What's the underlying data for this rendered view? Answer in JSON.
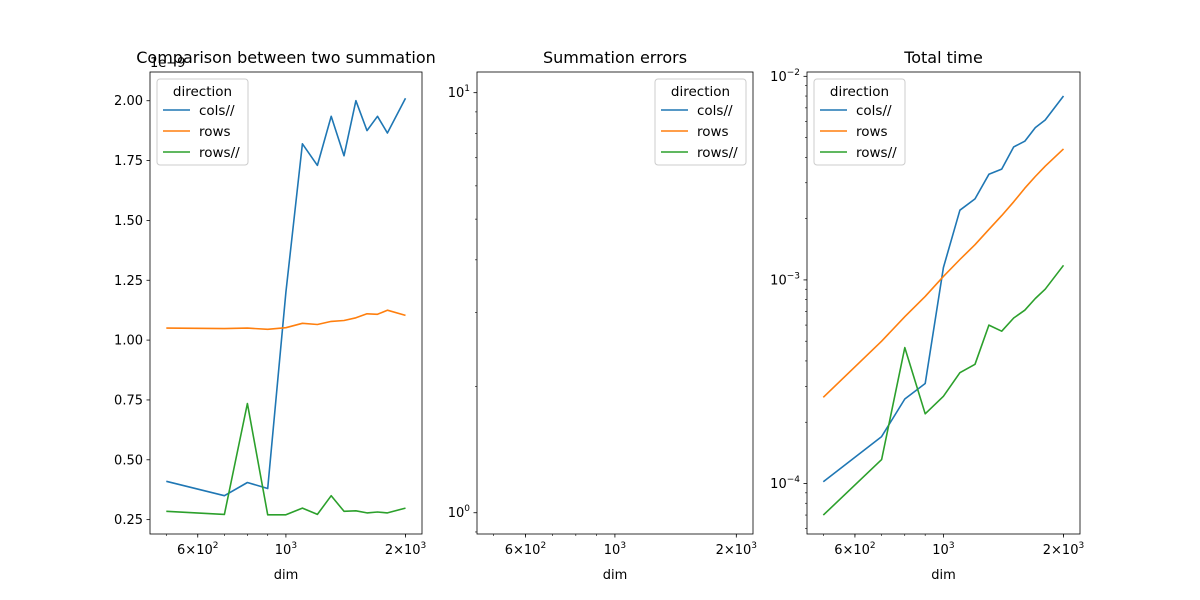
{
  "chart_data": [
    {
      "type": "line",
      "title": "Comparison between two summation",
      "xlabel": "dim",
      "ylabel": "",
      "xscale": "log",
      "yscale": "linear",
      "xlim": [
        455,
        2200
      ],
      "ylim": [
        0.19,
        2.12
      ],
      "y_offset_label": "1e−9",
      "x_ticks": [
        {
          "value": 600,
          "base": "6",
          "mant": "×10",
          "exp": "2"
        },
        {
          "value": 1000,
          "base": "",
          "mant": "10",
          "exp": "3"
        },
        {
          "value": 2000,
          "base": "2",
          "mant": "×10",
          "exp": "3"
        }
      ],
      "y_ticks": [
        {
          "value": 0.25,
          "label": "0.25"
        },
        {
          "value": 0.5,
          "label": "0.50"
        },
        {
          "value": 0.75,
          "label": "0.75"
        },
        {
          "value": 1.0,
          "label": "1.00"
        },
        {
          "value": 1.25,
          "label": "1.25"
        },
        {
          "value": 1.5,
          "label": "1.50"
        },
        {
          "value": 1.75,
          "label": "1.75"
        },
        {
          "value": 2.0,
          "label": "2.00"
        }
      ],
      "legend": {
        "title": "direction",
        "placement": "top-left"
      },
      "series": [
        {
          "name": "cols//",
          "color": "#1f77b4",
          "x": [
            500,
            700,
            800,
            900,
            1000,
            1100,
            1200,
            1300,
            1400,
            1500,
            1600,
            1700,
            1800,
            2000
          ],
          "y": [
            0.41,
            0.35,
            0.405,
            0.38,
            1.2,
            1.82,
            1.73,
            1.935,
            1.77,
            2.0,
            1.875,
            1.935,
            1.865,
            2.01
          ]
        },
        {
          "name": "rows",
          "color": "#ff7f0e",
          "x": [
            500,
            700,
            800,
            900,
            1000,
            1100,
            1200,
            1300,
            1400,
            1500,
            1600,
            1700,
            1800,
            2000
          ],
          "y": [
            1.05,
            1.048,
            1.05,
            1.045,
            1.052,
            1.07,
            1.065,
            1.078,
            1.082,
            1.093,
            1.11,
            1.108,
            1.125,
            1.103
          ]
        },
        {
          "name": "rows//",
          "color": "#2ca02c",
          "x": [
            500,
            700,
            800,
            900,
            1000,
            1100,
            1200,
            1300,
            1400,
            1500,
            1600,
            1700,
            1800,
            2000
          ],
          "y": [
            0.285,
            0.272,
            0.735,
            0.27,
            0.27,
            0.298,
            0.272,
            0.35,
            0.285,
            0.287,
            0.278,
            0.282,
            0.278,
            0.298
          ]
        }
      ]
    },
    {
      "type": "line",
      "title": "Summation errors",
      "xlabel": "dim",
      "ylabel": "",
      "xscale": "log",
      "yscale": "log",
      "xlim": [
        455,
        2200
      ],
      "ylim": [
        0.89,
        11.2
      ],
      "x_ticks": [
        {
          "value": 600,
          "base": "6",
          "mant": "×10",
          "exp": "2"
        },
        {
          "value": 1000,
          "base": "",
          "mant": "10",
          "exp": "3"
        },
        {
          "value": 2000,
          "base": "2",
          "mant": "×10",
          "exp": "3"
        }
      ],
      "y_ticks": [
        {
          "value": 1,
          "base": "",
          "mant": "10",
          "exp": "0"
        },
        {
          "value": 10,
          "base": "",
          "mant": "10",
          "exp": "1"
        }
      ],
      "legend": {
        "title": "direction",
        "placement": "top-right"
      },
      "series": [
        {
          "name": "cols//",
          "color": "#1f77b4",
          "x": [],
          "y": []
        },
        {
          "name": "rows",
          "color": "#ff7f0e",
          "x": [],
          "y": []
        },
        {
          "name": "rows//",
          "color": "#2ca02c",
          "x": [],
          "y": []
        }
      ]
    },
    {
      "type": "line",
      "title": "Total time",
      "xlabel": "dim",
      "ylabel": "",
      "xscale": "log",
      "yscale": "log",
      "xlim": [
        455,
        2200
      ],
      "ylim": [
        5.65e-05,
        0.0105
      ],
      "x_ticks": [
        {
          "value": 600,
          "base": "6",
          "mant": "×10",
          "exp": "2"
        },
        {
          "value": 1000,
          "base": "",
          "mant": "10",
          "exp": "3"
        },
        {
          "value": 2000,
          "base": "2",
          "mant": "×10",
          "exp": "3"
        }
      ],
      "y_ticks": [
        {
          "value": 0.0001,
          "base": "",
          "mant": "10",
          "exp": "−4"
        },
        {
          "value": 0.001,
          "base": "",
          "mant": "10",
          "exp": "−3"
        },
        {
          "value": 0.01,
          "base": "",
          "mant": "10",
          "exp": "−2"
        }
      ],
      "legend": {
        "title": "direction",
        "placement": "top-left"
      },
      "series": [
        {
          "name": "cols//",
          "color": "#1f77b4",
          "x": [
            500,
            700,
            800,
            900,
            1000,
            1100,
            1200,
            1300,
            1400,
            1500,
            1600,
            1700,
            1800,
            2000
          ],
          "y": [
            0.000102,
            0.00017,
            0.00026,
            0.00031,
            0.00115,
            0.0022,
            0.0025,
            0.0033,
            0.0035,
            0.0045,
            0.0048,
            0.0056,
            0.0061,
            0.008
          ]
        },
        {
          "name": "rows",
          "color": "#ff7f0e",
          "x": [
            500,
            700,
            800,
            900,
            1000,
            1100,
            1200,
            1300,
            1400,
            1500,
            1600,
            1700,
            1800,
            2000
          ],
          "y": [
            0.000265,
            0.0005,
            0.00066,
            0.00083,
            0.00104,
            0.00126,
            0.00149,
            0.00177,
            0.00207,
            0.00242,
            0.00282,
            0.00322,
            0.00362,
            0.0044
          ]
        },
        {
          "name": "rows//",
          "color": "#2ca02c",
          "x": [
            500,
            700,
            800,
            900,
            1000,
            1100,
            1200,
            1300,
            1400,
            1500,
            1600,
            1700,
            1800,
            2000
          ],
          "y": [
            7e-05,
            0.000131,
            0.000465,
            0.00022,
            0.000268,
            0.00035,
            0.000385,
            0.0006,
            0.00056,
            0.00065,
            0.00071,
            0.00081,
            0.0009,
            0.00118
          ]
        }
      ]
    }
  ]
}
